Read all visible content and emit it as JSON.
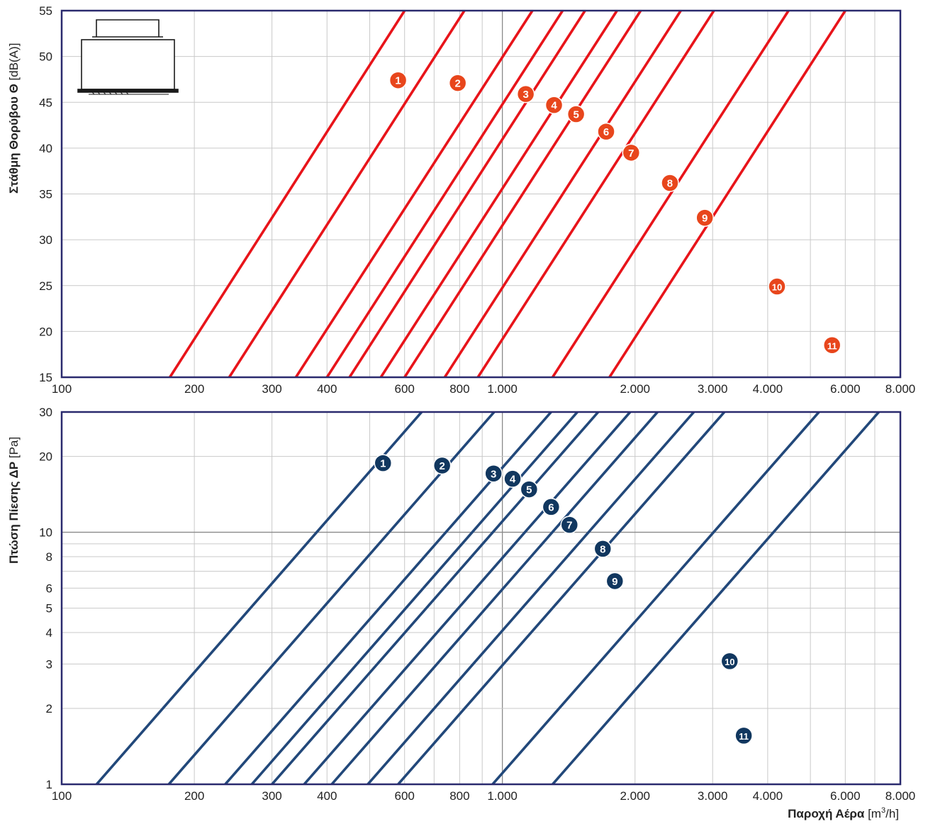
{
  "colors": {
    "noise_line": "#e8141a",
    "noise_marker": "#e8461c",
    "pressure_line": "#22487a",
    "pressure_marker": "#11375f",
    "frame": "#2a2a6e",
    "grid": "#c9c9c9"
  },
  "icon": "diffuser-icon",
  "x_axis": {
    "label_bold": "Παροχή Αέρα",
    "label_unit_prefix": "[m",
    "label_unit_sup": "3",
    "label_unit_suffix": "/h]",
    "tick_values": [
      100,
      200,
      300,
      400,
      600,
      800,
      1000,
      2000,
      3000,
      4000,
      6000,
      8000
    ],
    "tick_labels": [
      "100",
      "200",
      "300",
      "400",
      "600",
      "800",
      "1.000",
      "2.000",
      "3.000",
      "4.000",
      "6.000",
      "8.000"
    ]
  },
  "chart_data": [
    {
      "type": "line",
      "x_scale": "log",
      "xlim": [
        100,
        8000
      ],
      "ylim": [
        15,
        55
      ],
      "y_scale": "linear",
      "ylabel_bold": "Στάθμη Θορύβου Θ",
      "ylabel_unit": "[dB(A)]",
      "y_ticks": [
        15,
        20,
        25,
        30,
        35,
        40,
        45,
        50,
        55
      ],
      "y_tick_labels": [
        "15",
        "20",
        "25",
        "30",
        "35",
        "40",
        "45",
        "50",
        "55"
      ],
      "grid": true,
      "series": [
        {
          "name": "1",
          "points": [
            [
              176,
              15
            ],
            [
              600,
              55
            ]
          ],
          "label_at": [
            580,
            47.4
          ]
        },
        {
          "name": "2",
          "points": [
            [
              240,
              15
            ],
            [
              820,
              55
            ]
          ],
          "label_at": [
            792,
            47.1
          ]
        },
        {
          "name": "3",
          "points": [
            [
              340,
              15
            ],
            [
              1170,
              55
            ]
          ],
          "label_at": [
            1130,
            45.9
          ]
        },
        {
          "name": "4",
          "points": [
            [
              400,
              15
            ],
            [
              1370,
              55
            ]
          ],
          "label_at": [
            1310,
            44.7
          ]
        },
        {
          "name": "5",
          "points": [
            [
              450,
              15
            ],
            [
              1540,
              55
            ]
          ],
          "label_at": [
            1470,
            43.7
          ]
        },
        {
          "name": "6",
          "points": [
            [
              530,
              15
            ],
            [
              1820,
              55
            ]
          ],
          "label_at": [
            1720,
            41.8
          ]
        },
        {
          "name": "7",
          "points": [
            [
              600,
              15
            ],
            [
              2060,
              55
            ]
          ],
          "label_at": [
            1960,
            39.5
          ]
        },
        {
          "name": "8",
          "points": [
            [
              740,
              15
            ],
            [
              2540,
              55
            ]
          ],
          "label_at": [
            2400,
            36.2
          ]
        },
        {
          "name": "9",
          "points": [
            [
              880,
              15
            ],
            [
              3020,
              55
            ]
          ],
          "label_at": [
            2880,
            32.4
          ]
        },
        {
          "name": "10",
          "points": [
            [
              1300,
              15
            ],
            [
              4460,
              55
            ]
          ],
          "label_at": [
            4200,
            24.9
          ]
        },
        {
          "name": "11",
          "points": [
            [
              1750,
              15
            ],
            [
              6000,
              55
            ]
          ],
          "label_at": [
            5600,
            18.5
          ]
        }
      ]
    },
    {
      "type": "line",
      "x_scale": "log",
      "xlim": [
        100,
        8000
      ],
      "ylim": [
        1,
        30
      ],
      "y_scale": "log",
      "ylabel_bold": "Πτώση Πίεσης ΔP",
      "ylabel_unit": "[Pa]",
      "y_ticks": [
        1,
        2,
        3,
        4,
        5,
        6,
        8,
        10,
        20,
        30
      ],
      "y_tick_labels": [
        "1",
        "2",
        "3",
        "4",
        "5",
        "6",
        "8",
        "10",
        "20",
        "30"
      ],
      "grid": true,
      "series": [
        {
          "name": "1",
          "points": [
            [
              120,
              1
            ],
            [
              656,
              30
            ]
          ],
          "label_at": [
            536,
            18.8
          ]
        },
        {
          "name": "2",
          "points": [
            [
              175,
              1
            ],
            [
              958,
              30
            ]
          ],
          "label_at": [
            730,
            18.4
          ]
        },
        {
          "name": "3",
          "points": [
            [
              235,
              1
            ],
            [
              1290,
              30
            ]
          ],
          "label_at": [
            955,
            17.1
          ]
        },
        {
          "name": "4",
          "points": [
            [
              270,
              1
            ],
            [
              1480,
              30
            ]
          ],
          "label_at": [
            1055,
            16.3
          ]
        },
        {
          "name": "5",
          "points": [
            [
              300,
              1
            ],
            [
              1650,
              30
            ]
          ],
          "label_at": [
            1150,
            14.8
          ]
        },
        {
          "name": "6",
          "points": [
            [
              355,
              1
            ],
            [
              1950,
              30
            ]
          ],
          "label_at": [
            1290,
            12.6
          ]
        },
        {
          "name": "7",
          "points": [
            [
              410,
              1
            ],
            [
              2250,
              30
            ]
          ],
          "label_at": [
            1420,
            10.7
          ]
        },
        {
          "name": "8",
          "points": [
            [
              495,
              1
            ],
            [
              2720,
              30
            ]
          ],
          "label_at": [
            1690,
            8.6
          ]
        },
        {
          "name": "9",
          "points": [
            [
              580,
              1
            ],
            [
              3190,
              30
            ]
          ],
          "label_at": [
            1800,
            6.4
          ]
        },
        {
          "name": "10",
          "points": [
            [
              950,
              1
            ],
            [
              5230,
              30
            ]
          ],
          "label_at": [
            3280,
            3.08
          ]
        },
        {
          "name": "11",
          "points": [
            [
              1300,
              1
            ],
            [
              7150,
              30
            ]
          ],
          "label_at": [
            3530,
            1.56
          ]
        }
      ]
    }
  ]
}
